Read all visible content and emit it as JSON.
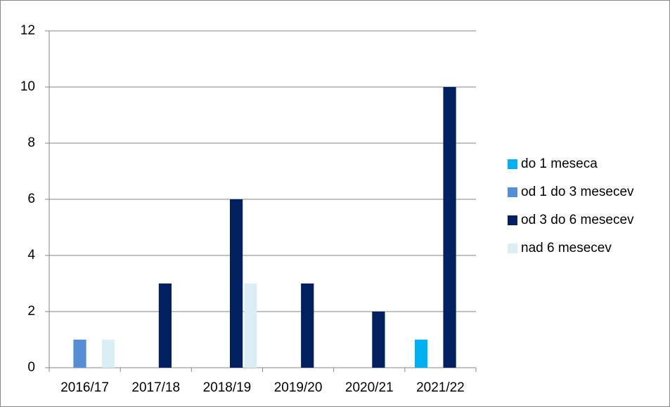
{
  "chart_data": {
    "type": "bar",
    "categories": [
      "2016/17",
      "2017/18",
      "2018/19",
      "2019/20",
      "2020/21",
      "2021/22"
    ],
    "series": [
      {
        "name": "do 1 meseca",
        "color": "#00b0f0",
        "values": [
          0,
          0,
          0,
          0,
          0,
          1
        ]
      },
      {
        "name": "od 1 do 3 mesecev",
        "color": "#558ed5",
        "values": [
          1,
          0,
          0,
          0,
          0,
          0
        ]
      },
      {
        "name": "od 3 do 6 mesecev",
        "color": "#002060",
        "values": [
          0,
          3,
          6,
          3,
          2,
          10
        ]
      },
      {
        "name": "nad 6 mesecev",
        "color": "#dbeef4",
        "values": [
          1,
          0,
          3,
          0,
          0,
          0
        ]
      }
    ],
    "ylim": [
      0,
      12
    ],
    "yticks": [
      0,
      2,
      4,
      6,
      8,
      10,
      12
    ],
    "grid": true,
    "legend": "right"
  }
}
